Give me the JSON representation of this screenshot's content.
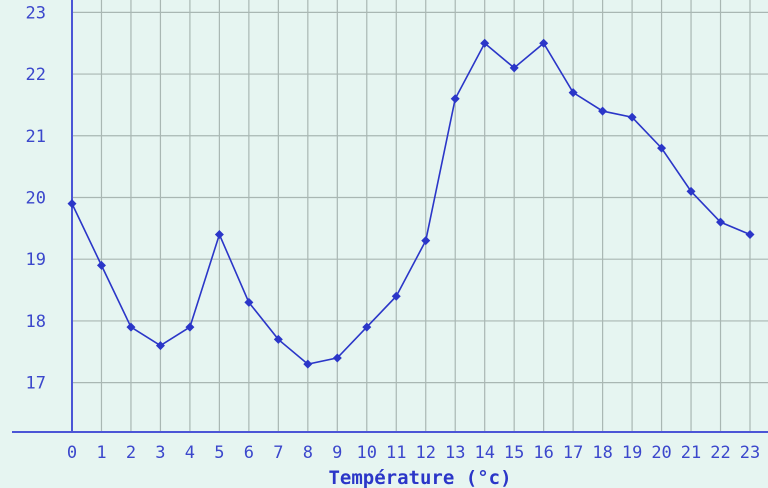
{
  "chart_data": {
    "type": "line",
    "title": "",
    "xlabel": "Température (°c)",
    "ylabel": "",
    "x": [
      "0",
      "1",
      "2",
      "3",
      "4",
      "5",
      "6",
      "7",
      "8",
      "9",
      "10",
      "11",
      "12",
      "13",
      "14",
      "15",
      "16",
      "17",
      "18",
      "19",
      "20",
      "21",
      "22",
      "23"
    ],
    "y_ticks": [
      17,
      18,
      19,
      20,
      21,
      22,
      23
    ],
    "ylim": [
      16.2,
      23.2
    ],
    "grid": true,
    "series": [
      {
        "name": "",
        "values": [
          19.9,
          18.9,
          17.9,
          17.6,
          17.9,
          19.4,
          18.3,
          17.7,
          17.3,
          17.4,
          17.9,
          18.4,
          19.3,
          21.6,
          22.5,
          22.1,
          22.5,
          21.7,
          21.4,
          21.3,
          20.8,
          20.1,
          19.6,
          19.4
        ]
      }
    ],
    "colors": {
      "background": "#e6f5f1",
      "grid": "#a9b7b3",
      "axis": "#4b55d6",
      "series": "#2b36c8",
      "labels": "#3b47cc"
    }
  }
}
